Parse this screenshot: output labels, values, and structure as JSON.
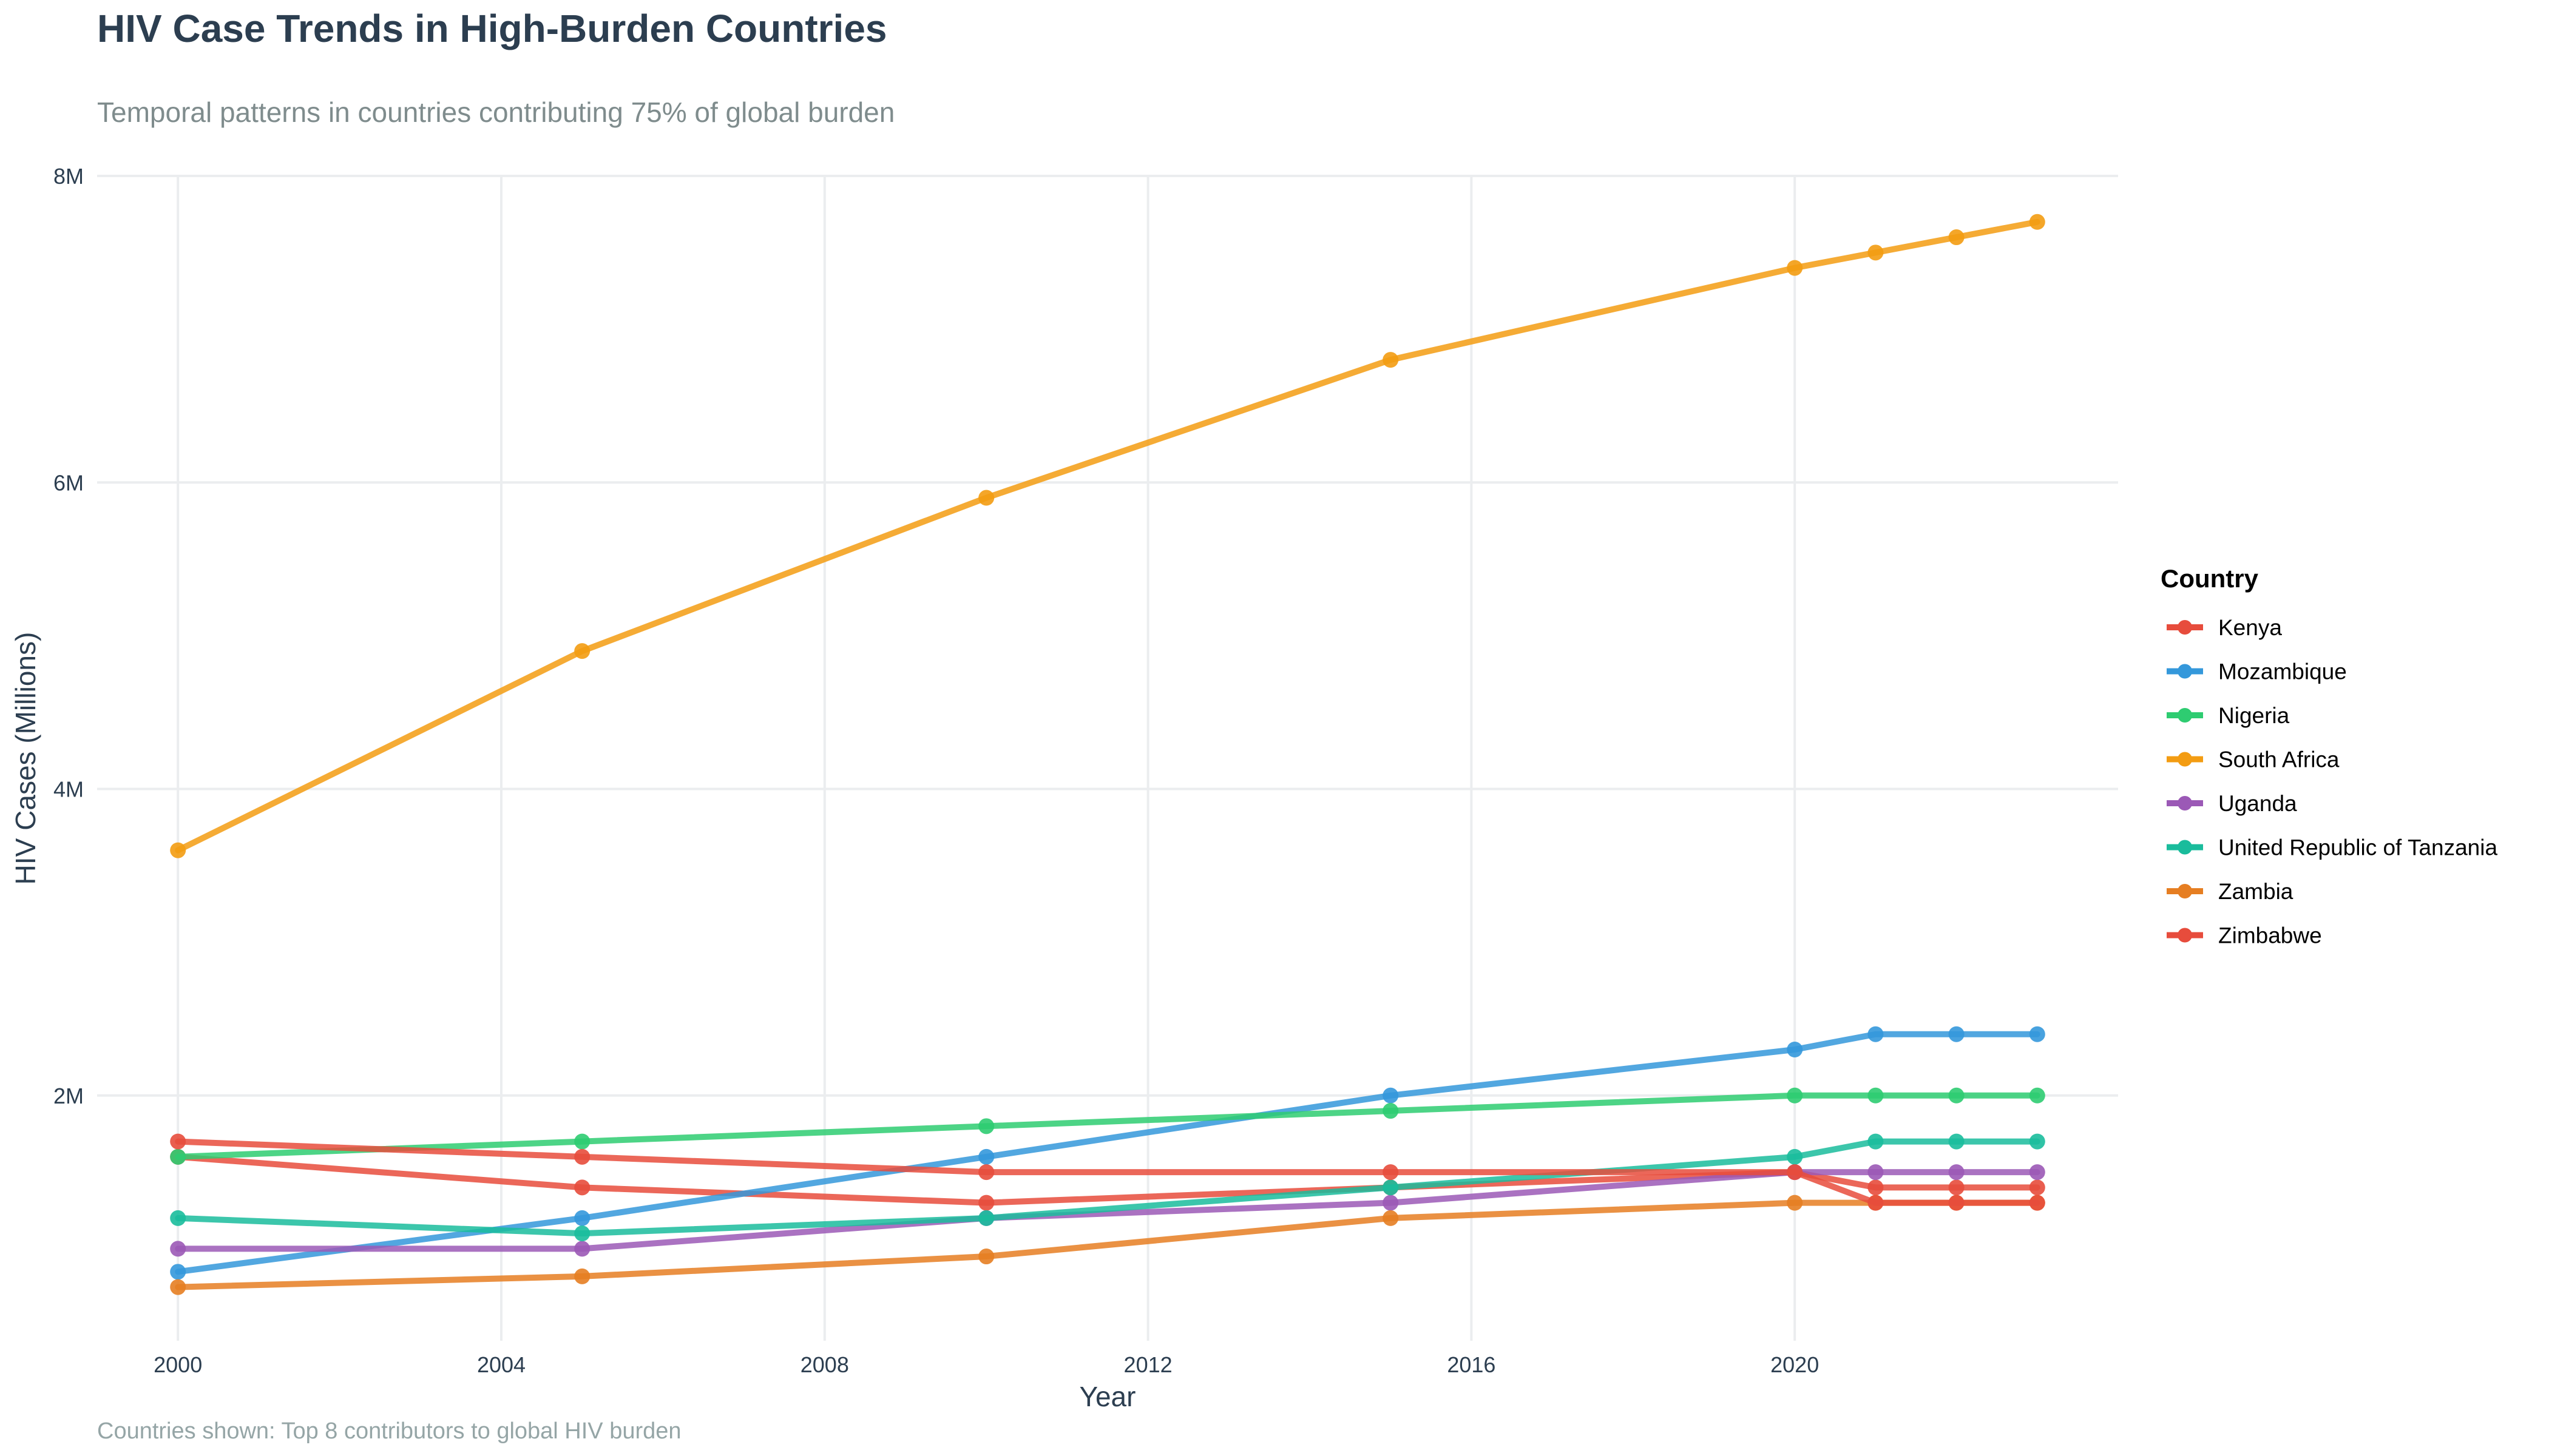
{
  "chart_data": {
    "type": "line",
    "title": "HIV Case Trends in High-Burden Countries",
    "subtitle": "Temporal patterns in countries contributing 75% of global burden",
    "caption": "Countries shown: Top 8 contributors to global HIV burden",
    "xlabel": "Year",
    "ylabel": "HIV Cases (Millions)",
    "xlim": [
      1999,
      2024
    ],
    "ylim": [
      0.4,
      8.0
    ],
    "x_ticks": [
      2000,
      2004,
      2008,
      2012,
      2016,
      2020
    ],
    "y_ticks": [
      2,
      4,
      6,
      8
    ],
    "y_tick_labels": [
      "2M",
      "4M",
      "6M",
      "8M"
    ],
    "x": [
      2000,
      2005,
      2010,
      2015,
      2020,
      2021,
      2022,
      2023
    ],
    "legend_title": "Country",
    "legend_position": "right",
    "grid": true,
    "series": [
      {
        "name": "Kenya",
        "color": "#e74c3c",
        "values": [
          1.6,
          1.4,
          1.3,
          1.4,
          1.5,
          1.4,
          1.4,
          1.4
        ]
      },
      {
        "name": "Mozambique",
        "color": "#3498db",
        "values": [
          0.85,
          1.2,
          1.6,
          2.0,
          2.3,
          2.4,
          2.4,
          2.4
        ]
      },
      {
        "name": "Nigeria",
        "color": "#2ecc71",
        "values": [
          1.6,
          1.7,
          1.8,
          1.9,
          2.0,
          2.0,
          2.0,
          2.0
        ]
      },
      {
        "name": "South Africa",
        "color": "#f39c12",
        "values": [
          3.6,
          4.9,
          5.9,
          6.8,
          7.4,
          7.5,
          7.6,
          7.7
        ]
      },
      {
        "name": "Uganda",
        "color": "#9b59b6",
        "values": [
          1.0,
          1.0,
          1.2,
          1.3,
          1.5,
          1.5,
          1.5,
          1.5
        ]
      },
      {
        "name": "United Republic of Tanzania",
        "color": "#1abc9c",
        "values": [
          1.2,
          1.1,
          1.2,
          1.4,
          1.6,
          1.7,
          1.7,
          1.7
        ]
      },
      {
        "name": "Zambia",
        "color": "#e67e22",
        "values": [
          0.75,
          0.82,
          0.95,
          1.2,
          1.3,
          1.3,
          1.3,
          1.3
        ]
      },
      {
        "name": "Zimbabwe",
        "color": "#e74c3c",
        "values": [
          1.7,
          1.6,
          1.5,
          1.5,
          1.5,
          1.3,
          1.3,
          1.3
        ]
      }
    ]
  }
}
